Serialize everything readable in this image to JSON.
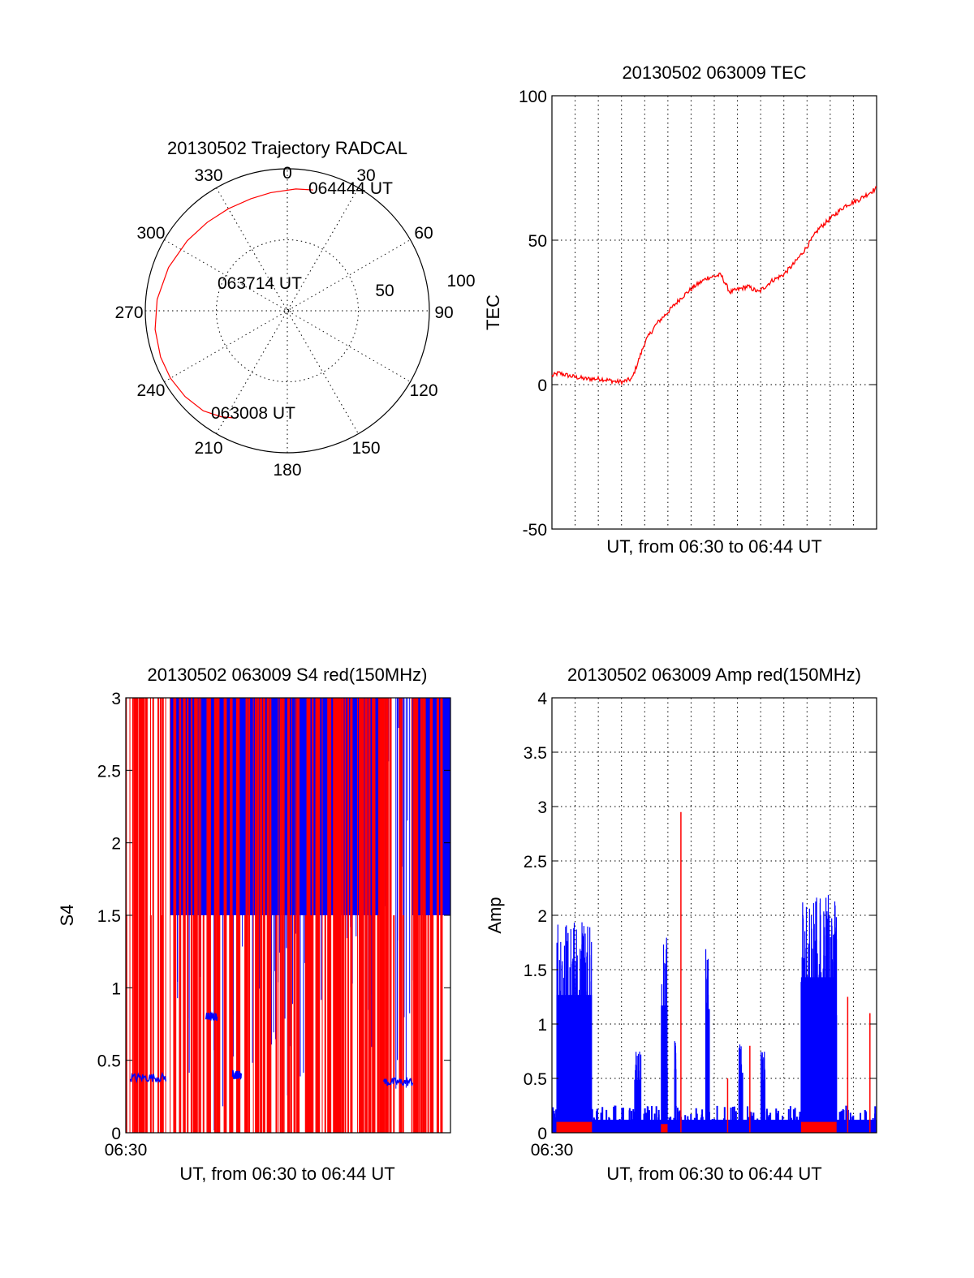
{
  "colors": {
    "red": "#ff0000",
    "blue": "#0000ff",
    "axis": "#000000",
    "background": "#ffffff"
  },
  "chart_data": [
    {
      "id": "trajectory",
      "type": "polar",
      "title": "20130502 Trajectory RADCAL",
      "angle_labels": [
        "0",
        "30",
        "60",
        "90",
        "120",
        "150",
        "180",
        "210",
        "240",
        "270",
        "300",
        "330"
      ],
      "radial_labels": [
        "50",
        "100"
      ],
      "rmax": 100,
      "track": {
        "azimuth": [
          206,
          212,
          220,
          230,
          240,
          250,
          262,
          275,
          290,
          305,
          318,
          330,
          342,
          352,
          4,
          12
        ],
        "zenith": [
          84,
          88,
          92,
          94,
          95,
          95,
          94,
          92,
          89,
          86,
          84,
          83,
          83,
          84,
          86,
          87
        ]
      },
      "annotations": [
        {
          "text": "064444 UT",
          "azimuth": 14,
          "zenith": 88
        },
        {
          "text": "063714 UT",
          "azimuth": 286,
          "zenith": 57
        },
        {
          "text": "063008 UT",
          "azimuth": 218,
          "zenith": 87
        }
      ]
    },
    {
      "id": "tec",
      "type": "line",
      "title": "20130502 063009 TEC",
      "xlabel": "UT, from 06:30 to 06:44 UT",
      "ylabel": "TEC",
      "ylim": [
        -50,
        100
      ],
      "yticks": [
        "100",
        "50",
        "0",
        "-50"
      ],
      "xlim": [
        0,
        14.6
      ],
      "x": [
        0,
        0.3,
        0.8,
        1.5,
        2.2,
        2.9,
        3.2,
        3.6,
        4.2,
        4.7,
        5.2,
        5.8,
        6.4,
        7.0,
        7.6,
        8.0,
        8.4,
        8.8,
        9.3,
        9.9,
        10.4,
        10.9,
        11.4,
        12.0,
        12.6,
        13.2,
        13.8,
        14.6
      ],
      "y": [
        3,
        4,
        3,
        2,
        2,
        1,
        1,
        2,
        15,
        21,
        25,
        30,
        34,
        37,
        38,
        32,
        33,
        34,
        32,
        36,
        38,
        42,
        47,
        54,
        58,
        62,
        64,
        68
      ]
    },
    {
      "id": "s4",
      "type": "line",
      "title": "20130502 063009 S4 red(150MHz)",
      "xlabel": "UT, from 06:30 to 06:44 UT",
      "ylabel": "S4",
      "ylim": [
        0,
        3
      ],
      "yticks": [
        "3",
        "2.5",
        "2",
        "1.5",
        "1",
        "0.5",
        "0"
      ],
      "x_start_label": "06:30",
      "xlim": [
        0,
        14.6
      ],
      "series": [
        {
          "name": "red",
          "note": "dense vertical spikes spanning full range"
        },
        {
          "name": "blue",
          "segments": [
            {
              "x0": 0.2,
              "x1": 1.8,
              "level": 0.38
            },
            {
              "x0": 11.6,
              "x1": 12.9,
              "level": 0.35
            },
            {
              "x0": 3.6,
              "x1": 4.1,
              "level": 0.8
            },
            {
              "x0": 4.8,
              "x1": 5.2,
              "level": 0.4
            }
          ]
        }
      ]
    },
    {
      "id": "amp",
      "type": "line",
      "title": "20130502 063009 Amp red(150MHz)",
      "xlabel": "UT, from 06:30 to 06:44 UT",
      "ylabel": "Amp",
      "ylim": [
        0,
        4
      ],
      "yticks": [
        "4",
        "3.5",
        "3",
        "2.5",
        "2",
        "1.5",
        "1",
        "0.5",
        "0"
      ],
      "x_start_label": "06:30",
      "xlim": [
        0,
        14.6
      ],
      "blue_bursts": [
        {
          "x0": 0.2,
          "x1": 1.8,
          "peak": 1.95
        },
        {
          "x0": 3.7,
          "x1": 4.0,
          "peak": 0.75
        },
        {
          "x0": 4.9,
          "x1": 5.2,
          "peak": 1.8
        },
        {
          "x0": 5.5,
          "x1": 5.6,
          "peak": 0.9
        },
        {
          "x0": 6.9,
          "x1": 7.1,
          "peak": 1.75
        },
        {
          "x0": 8.4,
          "x1": 8.6,
          "peak": 0.85
        },
        {
          "x0": 9.4,
          "x1": 9.6,
          "peak": 0.75
        },
        {
          "x0": 11.2,
          "x1": 12.8,
          "peak": 2.2
        }
      ],
      "red_spikes": [
        {
          "x": 5.8,
          "value": 2.95
        },
        {
          "x": 8.9,
          "value": 0.8
        },
        {
          "x": 7.9,
          "value": 0.5
        },
        {
          "x": 13.3,
          "value": 1.25
        },
        {
          "x": 14.3,
          "value": 1.1
        }
      ],
      "red_base_blocks": [
        {
          "x0": 0.2,
          "x1": 1.8,
          "level": 0.1
        },
        {
          "x0": 4.9,
          "x1": 5.2,
          "level": 0.08
        },
        {
          "x0": 11.2,
          "x1": 12.8,
          "level": 0.1
        }
      ]
    }
  ]
}
